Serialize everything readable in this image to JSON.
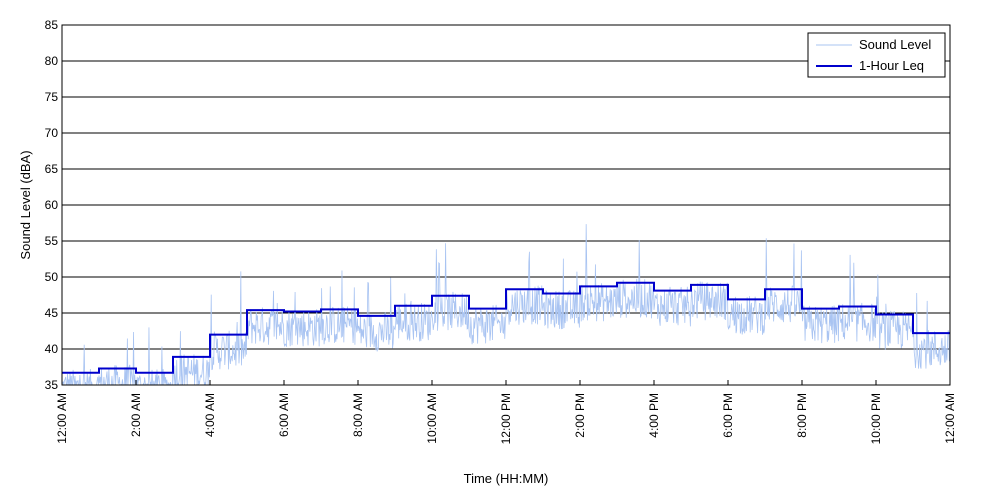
{
  "chart_data": {
    "type": "line",
    "xlabel": "Time (HH:MM)",
    "ylabel": "Sound Level (dBA)",
    "ylim": [
      35,
      85
    ],
    "yticks": [
      35,
      40,
      45,
      50,
      55,
      60,
      65,
      70,
      75,
      80,
      85
    ],
    "xlim_hours": [
      0,
      24
    ],
    "x_tick_hours": [
      0,
      2,
      4,
      6,
      8,
      10,
      12,
      14,
      16,
      18,
      20,
      22,
      24
    ],
    "x_tick_labels": [
      "12:00 AM",
      "2:00 AM",
      "4:00 AM",
      "6:00 AM",
      "8:00 AM",
      "10:00 AM",
      "12:00 PM",
      "2:00 PM",
      "4:00 PM",
      "6:00 PM",
      "8:00 PM",
      "10:00 PM",
      "12:00 AM"
    ],
    "grid": "horizontal",
    "legend_position": "top-right",
    "colors": {
      "sound_level": "#a9c4f2",
      "leq": "#0000cc"
    },
    "series": [
      {
        "name": "Sound Level",
        "style": "thin-light-blue",
        "samples_per_hour": 60,
        "hourly_levels": [
          36.7,
          37.3,
          36.7,
          38.9,
          42.0,
          45.4,
          45.2,
          45.5,
          44.6,
          46.0,
          47.4,
          45.6,
          48.3,
          47.7,
          48.7,
          49.2,
          48.1,
          48.9,
          46.9,
          48.3,
          45.6,
          45.9,
          44.8,
          42.2
        ]
      },
      {
        "name": "1-Hour Leq",
        "style": "thick-dark-blue-step",
        "x_hours": [
          0,
          1,
          2,
          3,
          4,
          5,
          6,
          7,
          8,
          9,
          10,
          11,
          12,
          13,
          14,
          15,
          16,
          17,
          18,
          19,
          20,
          21,
          22,
          23
        ],
        "values": [
          36.7,
          37.3,
          36.7,
          38.9,
          42.0,
          45.4,
          45.2,
          45.5,
          44.6,
          46.0,
          47.4,
          45.6,
          48.3,
          47.7,
          48.7,
          49.2,
          48.1,
          48.9,
          46.9,
          48.3,
          45.6,
          45.9,
          44.8,
          42.2
        ]
      }
    ]
  }
}
